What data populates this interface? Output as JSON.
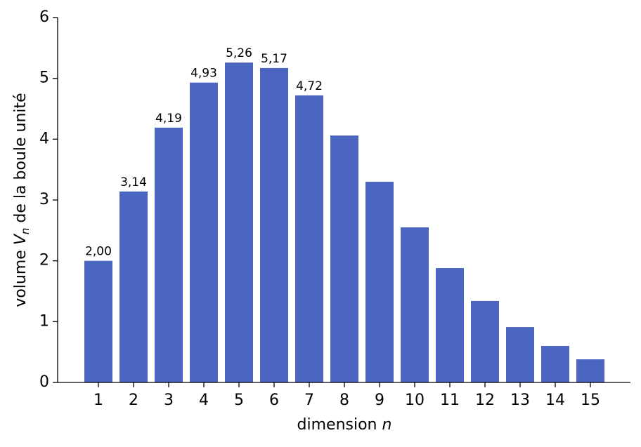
{
  "chart_data": {
    "type": "bar",
    "categories": [
      "1",
      "2",
      "3",
      "4",
      "5",
      "6",
      "7",
      "8",
      "9",
      "10",
      "11",
      "12",
      "13",
      "14",
      "15"
    ],
    "values": [
      2.0,
      3.14,
      4.19,
      4.93,
      5.26,
      5.17,
      4.72,
      4.06,
      3.3,
      2.55,
      1.88,
      1.34,
      0.91,
      0.6,
      0.38
    ],
    "value_labels": [
      "2,00",
      "3,14",
      "4,19",
      "4,93",
      "5,26",
      "5,17",
      "4,72",
      null,
      null,
      null,
      null,
      null,
      null,
      null,
      null
    ],
    "color": "#4a66c0",
    "ylim": [
      0,
      6
    ],
    "yticks": [
      0,
      1,
      2,
      3,
      4,
      5,
      6
    ],
    "grid": false,
    "xlabel": {
      "text": "dimension",
      "var": "n"
    },
    "ylabel": {
      "before": "volume",
      "var": "V",
      "sub": "n",
      "after": "de la boule unité"
    }
  }
}
